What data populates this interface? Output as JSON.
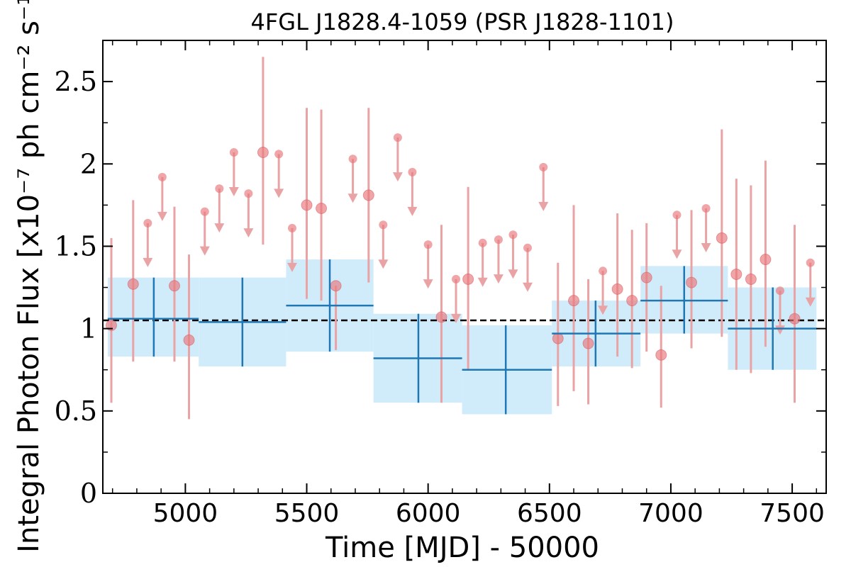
{
  "chart_data": {
    "type": "scatter",
    "title": "4FGL J1828.4-1059 (PSR J1828-1101)",
    "xlabel": "Time [MJD] - 50000",
    "ylabel": "Integral Photon Flux [x10⁻⁷ ph cm⁻² s⁻¹]",
    "xlim": [
      4660,
      7640
    ],
    "ylim": [
      0,
      2.75
    ],
    "x_ticks": [
      5000,
      5500,
      6000,
      6500,
      7000,
      7500
    ],
    "x_tick_labels": [
      "5000",
      "5500",
      "6000",
      "6500",
      "7000",
      "7500"
    ],
    "y_ticks": [
      0,
      0.5,
      1,
      1.5,
      2,
      2.5
    ],
    "y_tick_labels": [
      "0",
      "0.5",
      "1",
      "1.5",
      "2",
      "2.5"
    ],
    "mean_flux": 1.05,
    "colors": {
      "points": "#e8767a",
      "errorbars": "#eaa3a5",
      "bins": "#1f77b4",
      "band": "#d0ecfb",
      "mean_line": "#000000"
    },
    "series": [
      {
        "kind": "monthly-detections",
        "points": [
          {
            "x": 4695,
            "y": 1.02,
            "lo": 0.55,
            "hi": 1.55
          },
          {
            "x": 4785,
            "y": 1.27,
            "lo": 0.8,
            "hi": 1.78
          },
          {
            "x": 4955,
            "y": 1.26,
            "lo": 0.8,
            "hi": 1.74
          },
          {
            "x": 5015,
            "y": 0.93,
            "lo": 0.45,
            "hi": 1.45
          },
          {
            "x": 5320,
            "y": 2.07,
            "lo": 1.51,
            "hi": 2.65
          },
          {
            "x": 5500,
            "y": 1.75,
            "lo": 1.18,
            "hi": 2.34
          },
          {
            "x": 5560,
            "y": 1.73,
            "lo": 1.17,
            "hi": 2.33
          },
          {
            "x": 5620,
            "y": 1.26,
            "lo": 0.87,
            "hi": 1.26
          },
          {
            "x": 5755,
            "y": 1.81,
            "lo": 1.28,
            "hi": 2.34
          },
          {
            "x": 6055,
            "y": 1.07,
            "lo": 0.55,
            "hi": 1.63
          },
          {
            "x": 6165,
            "y": 1.3,
            "lo": 0.75,
            "hi": 1.86
          },
          {
            "x": 6535,
            "y": 0.94,
            "lo": 0.53,
            "hi": 1.4
          },
          {
            "x": 6600,
            "y": 1.17,
            "lo": 0.62,
            "hi": 1.75
          },
          {
            "x": 6660,
            "y": 0.91,
            "lo": 0.54,
            "hi": 1.3
          },
          {
            "x": 6780,
            "y": 1.24,
            "lo": 0.83,
            "hi": 1.7
          },
          {
            "x": 6840,
            "y": 1.17,
            "lo": 0.76,
            "hi": 1.6
          },
          {
            "x": 6900,
            "y": 1.31,
            "lo": 0.86,
            "hi": 1.64
          },
          {
            "x": 6960,
            "y": 0.84,
            "lo": 0.52,
            "hi": 1.26
          },
          {
            "x": 7085,
            "y": 1.28,
            "lo": 0.88,
            "hi": 1.72
          },
          {
            "x": 7210,
            "y": 1.55,
            "lo": 0.95,
            "hi": 2.21
          },
          {
            "x": 7270,
            "y": 1.33,
            "lo": 0.75,
            "hi": 1.91
          },
          {
            "x": 7330,
            "y": 1.3,
            "lo": 0.73,
            "hi": 1.87
          },
          {
            "x": 7390,
            "y": 1.42,
            "lo": 0.89,
            "hi": 2.02
          },
          {
            "x": 7510,
            "y": 1.06,
            "lo": 0.55,
            "hi": 1.63
          }
        ]
      },
      {
        "kind": "monthly-upper-limits",
        "points": [
          {
            "x": 4845,
            "y": 1.64
          },
          {
            "x": 4905,
            "y": 1.92
          },
          {
            "x": 5080,
            "y": 1.71
          },
          {
            "x": 5140,
            "y": 1.85
          },
          {
            "x": 5200,
            "y": 2.07
          },
          {
            "x": 5260,
            "y": 1.82
          },
          {
            "x": 5385,
            "y": 2.06
          },
          {
            "x": 5440,
            "y": 1.61
          },
          {
            "x": 5690,
            "y": 2.03
          },
          {
            "x": 5815,
            "y": 1.63
          },
          {
            "x": 5875,
            "y": 2.16
          },
          {
            "x": 5935,
            "y": 1.95
          },
          {
            "x": 6000,
            "y": 1.51
          },
          {
            "x": 6115,
            "y": 1.3
          },
          {
            "x": 6225,
            "y": 1.52
          },
          {
            "x": 6290,
            "y": 1.54
          },
          {
            "x": 6350,
            "y": 1.57
          },
          {
            "x": 6410,
            "y": 1.49
          },
          {
            "x": 6475,
            "y": 1.98
          },
          {
            "x": 6720,
            "y": 1.35
          },
          {
            "x": 7025,
            "y": 1.69
          },
          {
            "x": 7145,
            "y": 1.73
          },
          {
            "x": 7450,
            "y": 1.23
          },
          {
            "x": 7575,
            "y": 1.4
          }
        ]
      },
      {
        "kind": "yearly-bins",
        "points": [
          {
            "x0": 4680,
            "x1": 5055,
            "xc": 4870,
            "y": 1.06,
            "lo": 0.83,
            "hi": 1.31
          },
          {
            "x0": 5055,
            "x1": 5415,
            "xc": 5235,
            "y": 1.04,
            "lo": 0.77,
            "hi": 1.31
          },
          {
            "x0": 5415,
            "x1": 5775,
            "xc": 5595,
            "y": 1.14,
            "lo": 0.86,
            "hi": 1.42
          },
          {
            "x0": 5775,
            "x1": 6140,
            "xc": 5960,
            "y": 0.82,
            "lo": 0.55,
            "hi": 1.09
          },
          {
            "x0": 6140,
            "x1": 6510,
            "xc": 6320,
            "y": 0.75,
            "lo": 0.48,
            "hi": 1.02
          },
          {
            "x0": 6510,
            "x1": 6875,
            "xc": 6690,
            "y": 0.97,
            "lo": 0.77,
            "hi": 1.17
          },
          {
            "x0": 6875,
            "x1": 7235,
            "xc": 7055,
            "y": 1.17,
            "lo": 0.97,
            "hi": 1.38
          },
          {
            "x0": 7235,
            "x1": 7600,
            "xc": 7420,
            "y": 1.0,
            "lo": 0.75,
            "hi": 1.25
          }
        ]
      }
    ]
  }
}
